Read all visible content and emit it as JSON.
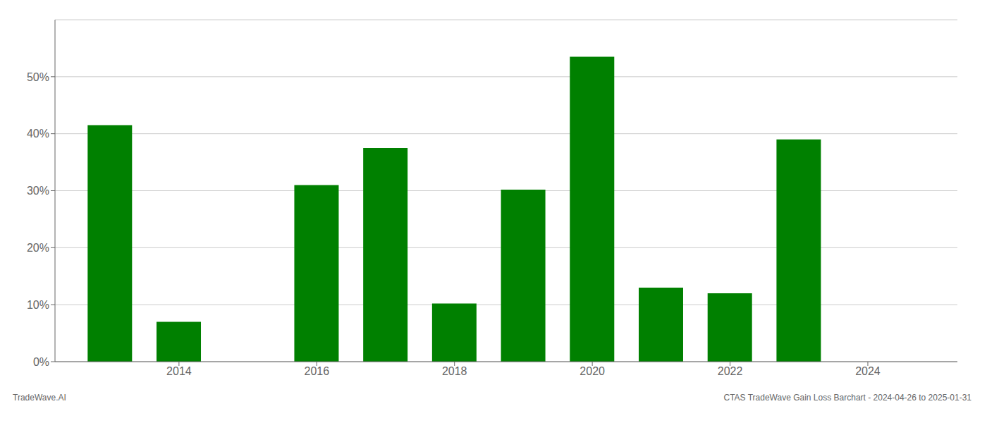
{
  "chart_data": {
    "type": "bar",
    "x": [
      2013,
      2014,
      2016,
      2017,
      2018,
      2019,
      2020,
      2021,
      2022,
      2023
    ],
    "values": [
      41.5,
      7.0,
      31.0,
      37.5,
      10.2,
      30.2,
      53.5,
      13.0,
      12.0,
      39.0
    ],
    "color": "#008000",
    "xlim": [
      2012.2,
      2025.3
    ],
    "xticks": [
      2014,
      2016,
      2018,
      2020,
      2022,
      2024
    ],
    "ylim": [
      0,
      60
    ],
    "yticks": [
      {
        "value": 0,
        "label": "0%"
      },
      {
        "value": 10,
        "label": "10%"
      },
      {
        "value": 20,
        "label": "20%"
      },
      {
        "value": 30,
        "label": "30%"
      },
      {
        "value": 40,
        "label": "40%"
      },
      {
        "value": 50,
        "label": "50%"
      }
    ],
    "grid": true,
    "annotations": [
      "TradeWave.AI",
      "CTAS TradeWave Gain Loss Barchart - 2024-04-26 to 2025-01-31"
    ]
  }
}
